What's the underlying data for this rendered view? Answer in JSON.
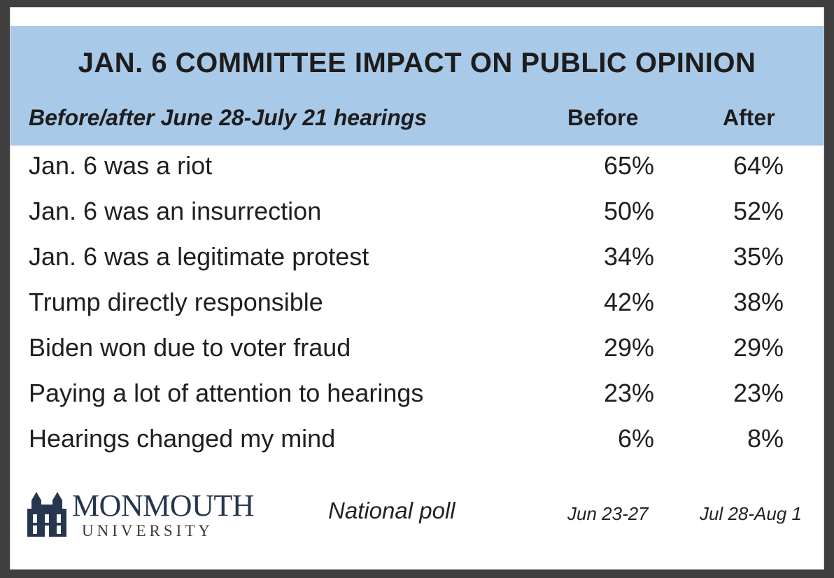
{
  "header": {
    "title": "JAN. 6 COMMITTEE IMPACT ON PUBLIC OPINION",
    "row_label": "Before/after June 28-July 21 hearings",
    "col_before": "Before",
    "col_after": "After"
  },
  "colors": {
    "header_bg": "#a9c9e8",
    "logo": "#26364f"
  },
  "chart_data": {
    "type": "table",
    "title": "JAN. 6 COMMITTEE IMPACT ON PUBLIC OPINION",
    "columns": [
      "Before",
      "After"
    ],
    "rows": [
      {
        "label": "Jan. 6 was a riot",
        "before": "65%",
        "after": "64%"
      },
      {
        "label": "Jan. 6 was an insurrection",
        "before": "50%",
        "after": "52%"
      },
      {
        "label": "Jan. 6 was a legitimate protest",
        "before": "34%",
        "after": "35%"
      },
      {
        "label": "Trump directly responsible",
        "before": "42%",
        "after": "38%"
      },
      {
        "label": "Biden won due to voter fraud",
        "before": "29%",
        "after": "29%"
      },
      {
        "label": "Paying a lot of attention to hearings",
        "before": "23%",
        "after": "23%"
      },
      {
        "label": "Hearings changed my mind",
        "before": "6%",
        "after": "8%"
      }
    ]
  },
  "footer": {
    "logo_name": "MONMOUTH",
    "logo_sub": "UNIVERSITY",
    "poll_label": "National poll",
    "date_before": "Jun 23-27",
    "date_after": "Jul 28-Aug 1"
  }
}
